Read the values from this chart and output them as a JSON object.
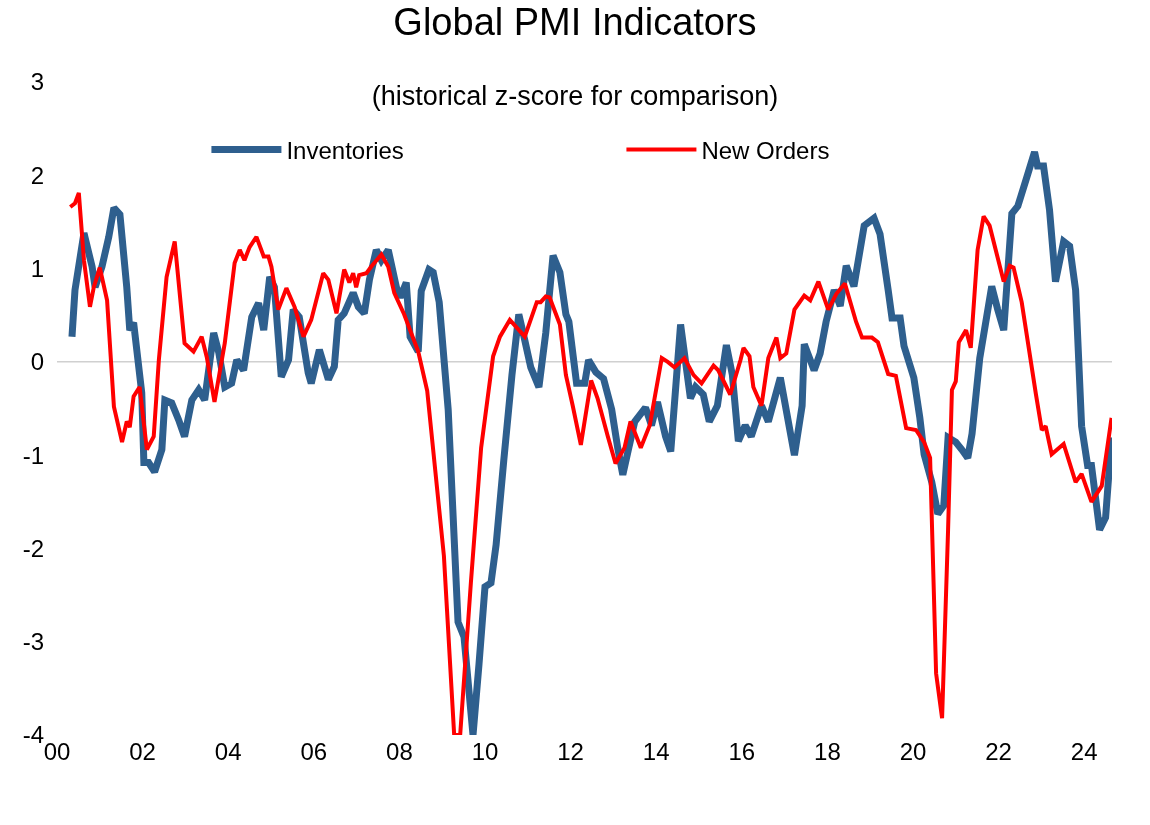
{
  "chart_data": {
    "type": "line",
    "title": "Global PMI Indicators",
    "subtitle": "(historical z-score for comparison)",
    "xlim": [
      2000,
      2024.65
    ],
    "xticks": [
      {
        "value": 2000,
        "label": "00"
      },
      {
        "value": 2002,
        "label": "02"
      },
      {
        "value": 2004,
        "label": "04"
      },
      {
        "value": 2006,
        "label": "06"
      },
      {
        "value": 2008,
        "label": "08"
      },
      {
        "value": 2010,
        "label": "10"
      },
      {
        "value": 2012,
        "label": "12"
      },
      {
        "value": 2014,
        "label": "14"
      },
      {
        "value": 2016,
        "label": "16"
      },
      {
        "value": 2018,
        "label": "18"
      },
      {
        "value": 2020,
        "label": "20"
      },
      {
        "value": 2022,
        "label": "22"
      },
      {
        "value": 2024,
        "label": "24"
      }
    ],
    "ylim": [
      -4,
      3
    ],
    "yticks": [
      -4,
      -3,
      -2,
      -1,
      0,
      1,
      2,
      3
    ],
    "grid": false,
    "legend": "top",
    "marker": "none",
    "line_style": "solid",
    "ref_lines": [
      {
        "axis": "y",
        "value": 0,
        "color": "#d0d0d0"
      }
    ],
    "series": [
      {
        "name": "Inventories",
        "color": "#2e5f8e",
        "x": [
          2000.35,
          2000.42,
          2000.63,
          2000.82,
          2000.89,
          2001.05,
          2001.21,
          2001.33,
          2001.47,
          2001.63,
          2001.7,
          2001.79,
          2001.98,
          2002.03,
          2002.14,
          2002.28,
          2002.45,
          2002.52,
          2002.68,
          2002.84,
          2002.98,
          2003.15,
          2003.31,
          2003.45,
          2003.66,
          2003.78,
          2003.92,
          2004.08,
          2004.2,
          2004.36,
          2004.55,
          2004.71,
          2004.83,
          2004.97,
          2005.08,
          2005.24,
          2005.41,
          2005.52,
          2005.66,
          2005.87,
          2005.94,
          2006.13,
          2006.34,
          2006.48,
          2006.57,
          2006.71,
          2006.92,
          2007.04,
          2007.18,
          2007.3,
          2007.46,
          2007.58,
          2007.74,
          2007.93,
          2008.02,
          2008.16,
          2008.25,
          2008.44,
          2008.51,
          2008.69,
          2008.79,
          2008.93,
          2009.14,
          2009.37,
          2009.51,
          2009.72,
          2009.86,
          2010.0,
          2010.14,
          2010.26,
          2010.44,
          2010.63,
          2010.79,
          2010.93,
          2011.07,
          2011.26,
          2011.42,
          2011.59,
          2011.75,
          2011.89,
          2011.96,
          2012.14,
          2012.33,
          2012.42,
          2012.59,
          2012.77,
          2012.96,
          2013.1,
          2013.22,
          2013.36,
          2013.5,
          2013.75,
          2013.89,
          2014.03,
          2014.22,
          2014.34,
          2014.57,
          2014.8,
          2014.92,
          2015.1,
          2015.24,
          2015.43,
          2015.64,
          2015.78,
          2015.92,
          2016.08,
          2016.22,
          2016.46,
          2016.62,
          2016.9,
          2017.23,
          2017.41,
          2017.46,
          2017.69,
          2017.83,
          2017.97,
          2018.16,
          2018.3,
          2018.44,
          2018.62,
          2018.86,
          2019.09,
          2019.23,
          2019.42,
          2019.51,
          2019.7,
          2019.79,
          2020.02,
          2020.16,
          2020.26,
          2020.44,
          2020.58,
          2020.72,
          2020.82,
          2021.0,
          2021.14,
          2021.28,
          2021.38,
          2021.56,
          2021.84,
          2021.98,
          2022.12,
          2022.31,
          2022.45,
          2022.68,
          2022.84,
          2022.91,
          2023.05,
          2023.19,
          2023.33,
          2023.52,
          2023.66,
          2023.8,
          2023.94,
          2024.08,
          2024.17,
          2024.36,
          2024.5,
          2024.64
        ],
        "values": [
          0.27,
          0.77,
          1.38,
          1.02,
          0.8,
          1.02,
          1.34,
          1.65,
          1.58,
          0.8,
          0.34,
          0.42,
          -0.33,
          -1.08,
          -1.08,
          -1.18,
          -0.94,
          -0.41,
          -0.44,
          -0.62,
          -0.8,
          -0.41,
          -0.3,
          -0.41,
          0.31,
          0.1,
          -0.27,
          -0.23,
          0.02,
          -0.09,
          0.48,
          0.63,
          0.34,
          0.91,
          0.8,
          -0.16,
          0.02,
          0.56,
          0.48,
          -0.12,
          -0.23,
          0.13,
          -0.19,
          -0.05,
          0.45,
          0.52,
          0.74,
          0.59,
          0.52,
          0.88,
          1.2,
          1.09,
          1.2,
          0.8,
          0.69,
          0.85,
          0.27,
          0.11,
          0.76,
          0.99,
          0.96,
          0.64,
          -0.51,
          -2.79,
          -2.95,
          -4.0,
          -3.24,
          -2.41,
          -2.37,
          -1.96,
          -1.05,
          -0.14,
          0.51,
          0.23,
          -0.06,
          -0.27,
          0.31,
          1.14,
          0.96,
          0.51,
          0.43,
          -0.23,
          -0.23,
          0.02,
          -0.11,
          -0.18,
          -0.51,
          -0.92,
          -1.21,
          -0.92,
          -0.64,
          -0.49,
          -0.68,
          -0.43,
          -0.8,
          -0.96,
          0.4,
          -0.39,
          -0.27,
          -0.35,
          -0.64,
          -0.47,
          0.18,
          -0.14,
          -0.85,
          -0.68,
          -0.8,
          -0.47,
          -0.64,
          -0.17,
          -1.0,
          -0.47,
          0.19,
          -0.09,
          0.09,
          0.43,
          0.77,
          0.6,
          1.03,
          0.81,
          1.46,
          1.54,
          1.37,
          0.77,
          0.47,
          0.47,
          0.17,
          -0.17,
          -0.6,
          -0.99,
          -1.29,
          -1.63,
          -1.54,
          -0.81,
          -0.86,
          -0.94,
          -1.03,
          -0.77,
          0.04,
          0.81,
          0.56,
          0.34,
          1.59,
          1.67,
          2.01,
          2.25,
          2.1,
          2.1,
          1.63,
          0.86,
          1.29,
          1.24,
          0.77,
          -0.69,
          -1.11,
          -1.11,
          -1.8,
          -1.67,
          -0.81
        ]
      },
      {
        "name": "New Orders",
        "color": "#ff0000",
        "x": [
          2000.31,
          2000.42,
          2000.51,
          2000.63,
          2000.77,
          2000.86,
          2001.0,
          2001.17,
          2001.33,
          2001.52,
          2001.63,
          2001.7,
          2001.79,
          2001.93,
          2002.1,
          2002.26,
          2002.38,
          2002.56,
          2002.75,
          2002.98,
          2003.19,
          2003.38,
          2003.5,
          2003.68,
          2003.92,
          2004.15,
          2004.27,
          2004.38,
          2004.5,
          2004.66,
          2004.83,
          2004.94,
          2005.01,
          2005.17,
          2005.36,
          2005.55,
          2005.76,
          2005.94,
          2006.22,
          2006.34,
          2006.53,
          2006.71,
          2006.83,
          2006.92,
          2006.99,
          2007.06,
          2007.23,
          2007.34,
          2007.58,
          2007.74,
          2007.88,
          2008.11,
          2008.44,
          2008.65,
          2009.04,
          2009.28,
          2009.42,
          2009.67,
          2009.91,
          2010.19,
          2010.35,
          2010.58,
          2010.93,
          2011.21,
          2011.3,
          2011.42,
          2011.51,
          2011.75,
          2011.89,
          2012.05,
          2012.24,
          2012.48,
          2012.63,
          2012.87,
          2013.05,
          2013.26,
          2013.4,
          2013.64,
          2013.85,
          2014.13,
          2014.27,
          2014.43,
          2014.66,
          2014.87,
          2015.06,
          2015.34,
          2015.45,
          2015.73,
          2015.97,
          2016.04,
          2016.18,
          2016.27,
          2016.46,
          2016.62,
          2016.81,
          2016.9,
          2017.04,
          2017.23,
          2017.46,
          2017.6,
          2017.79,
          2018.02,
          2018.21,
          2018.41,
          2018.67,
          2018.81,
          2019.04,
          2019.18,
          2019.42,
          2019.6,
          2019.84,
          2020.07,
          2020.26,
          2020.4,
          2020.54,
          2020.68,
          2020.82,
          2020.91,
          2021.0,
          2021.07,
          2021.24,
          2021.35,
          2021.51,
          2021.65,
          2021.79,
          2022.12,
          2022.26,
          2022.35,
          2022.54,
          2022.87,
          2023.01,
          2023.1,
          2023.24,
          2023.52,
          2023.8,
          2023.94,
          2024.17,
          2024.41,
          2024.64
        ],
        "values": [
          1.66,
          1.7,
          1.81,
          1.09,
          0.59,
          0.8,
          1.01,
          0.66,
          -0.48,
          -0.86,
          -0.64,
          -0.7,
          -0.37,
          -0.27,
          -0.94,
          -0.8,
          0.02,
          0.91,
          1.29,
          0.2,
          0.11,
          0.27,
          0.05,
          -0.43,
          0.2,
          1.06,
          1.2,
          1.09,
          1.23,
          1.34,
          1.13,
          1.13,
          1.02,
          0.56,
          0.79,
          0.59,
          0.27,
          0.45,
          0.95,
          0.88,
          0.52,
          0.99,
          0.85,
          0.95,
          0.8,
          0.93,
          0.95,
          1.02,
          1.15,
          1.02,
          0.74,
          0.51,
          0.11,
          -0.31,
          -2.08,
          -4.0,
          -4.0,
          -2.37,
          -0.92,
          0.06,
          0.27,
          0.45,
          0.27,
          0.64,
          0.64,
          0.7,
          0.69,
          0.4,
          -0.14,
          -0.47,
          -0.89,
          -0.2,
          -0.39,
          -0.8,
          -1.09,
          -0.92,
          -0.64,
          -0.92,
          -0.68,
          0.04,
          0.0,
          -0.06,
          0.04,
          -0.14,
          -0.23,
          -0.04,
          -0.09,
          -0.35,
          0.02,
          0.15,
          0.06,
          -0.27,
          -0.47,
          0.04,
          0.26,
          0.04,
          0.09,
          0.56,
          0.71,
          0.66,
          0.86,
          0.56,
          0.73,
          0.84,
          0.43,
          0.26,
          0.26,
          0.21,
          -0.13,
          -0.15,
          -0.71,
          -0.73,
          -0.86,
          -1.03,
          -3.34,
          -3.82,
          -1.8,
          -0.3,
          -0.21,
          0.21,
          0.34,
          0.15,
          1.2,
          1.56,
          1.46,
          0.86,
          1.03,
          1.01,
          0.64,
          -0.34,
          -0.73,
          -0.69,
          -0.99,
          -0.88,
          -1.29,
          -1.2,
          -1.5,
          -1.33,
          -0.6
        ]
      }
    ]
  }
}
